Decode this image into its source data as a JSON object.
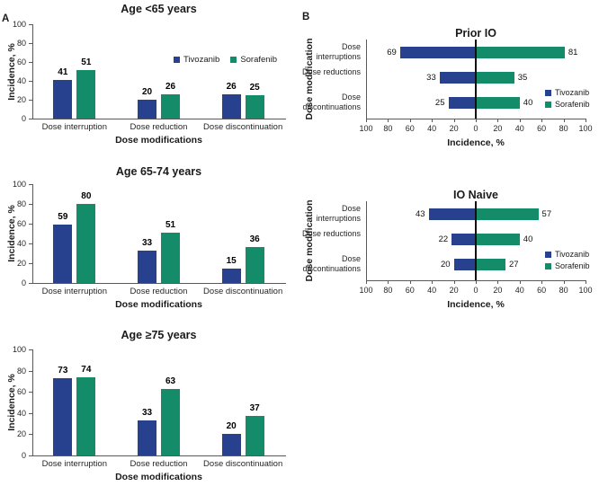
{
  "panels": {
    "a_label": "A",
    "b_label": "B"
  },
  "colors": {
    "tivozanib": "#28418e",
    "sorafenib": "#148c69",
    "axis": "#595959",
    "zero_line": "#111111"
  },
  "legend": {
    "items": [
      {
        "name": "Tivozanib",
        "color_key": "tivozanib"
      },
      {
        "name": "Sorafenib",
        "color_key": "sorafenib"
      }
    ]
  },
  "chart_data": [
    {
      "id": "age-lt-65",
      "type": "bar",
      "title": "Age <65 years",
      "categories": [
        "Dose interruption",
        "Dose reduction",
        "Dose discontinuation"
      ],
      "series": [
        {
          "name": "Tivozanib",
          "values": [
            41,
            20,
            26
          ]
        },
        {
          "name": "Sorafenib",
          "values": [
            51,
            26,
            25
          ]
        }
      ],
      "xlabel": "Dose modifications",
      "ylabel": "Incidence, %",
      "ylim": [
        0,
        100
      ],
      "yticks": [
        0,
        20,
        40,
        60,
        80,
        100
      ],
      "grid": false,
      "legend": "inside-right"
    },
    {
      "id": "age-65-74",
      "type": "bar",
      "title": "Age 65-74 years",
      "categories": [
        "Dose interruption",
        "Dose reduction",
        "Dose discontinuation"
      ],
      "series": [
        {
          "name": "Tivozanib",
          "values": [
            59,
            33,
            15
          ]
        },
        {
          "name": "Sorafenib",
          "values": [
            80,
            51,
            36
          ]
        }
      ],
      "xlabel": "Dose modifications",
      "ylabel": "Incidence, %",
      "ylim": [
        0,
        100
      ],
      "yticks": [
        0,
        20,
        40,
        60,
        80,
        100
      ],
      "grid": false,
      "legend": null
    },
    {
      "id": "age-ge-75",
      "type": "bar",
      "title": "Age ≥75 years",
      "categories": [
        "Dose interruption",
        "Dose reduction",
        "Dose discontinuation"
      ],
      "series": [
        {
          "name": "Tivozanib",
          "values": [
            73,
            33,
            20
          ]
        },
        {
          "name": "Sorafenib",
          "values": [
            74,
            63,
            37
          ]
        }
      ],
      "xlabel": "Dose modifications",
      "ylabel": "Incidence, %",
      "ylim": [
        0,
        100
      ],
      "yticks": [
        0,
        20,
        40,
        60,
        80,
        100
      ],
      "grid": false,
      "legend": null
    },
    {
      "id": "prior-io",
      "type": "diverging-bar",
      "title": "Prior IO",
      "categories": [
        "Dose interruptions",
        "Dose reductions",
        "Dose discontinuations"
      ],
      "series": [
        {
          "name": "Tivozanib",
          "direction": "left",
          "values": [
            69,
            33,
            25
          ]
        },
        {
          "name": "Sorafenib",
          "direction": "right",
          "values": [
            81,
            35,
            40
          ]
        }
      ],
      "xlabel": "Incidence, %",
      "ylabel": "Dose modification",
      "xlim": [
        -100,
        100
      ],
      "xtick_labels": [
        100,
        80,
        60,
        40,
        20,
        0,
        20,
        40,
        60,
        80,
        100
      ],
      "grid": false,
      "legend": "inside-right-stacked"
    },
    {
      "id": "io-naive",
      "type": "diverging-bar",
      "title": "IO Naive",
      "categories": [
        "Dose interruptions",
        "Dose reductions",
        "Dose discontinuations"
      ],
      "series": [
        {
          "name": "Tivozanib",
          "direction": "left",
          "values": [
            43,
            22,
            20
          ]
        },
        {
          "name": "Sorafenib",
          "direction": "right",
          "values": [
            57,
            40,
            27
          ]
        }
      ],
      "xlabel": "Incidence, %",
      "ylabel": "Dose modification",
      "xlim": [
        -100,
        100
      ],
      "xtick_labels": [
        100,
        80,
        60,
        40,
        20,
        0,
        20,
        40,
        60,
        80,
        100
      ],
      "grid": false,
      "legend": "inside-right-stacked"
    }
  ]
}
